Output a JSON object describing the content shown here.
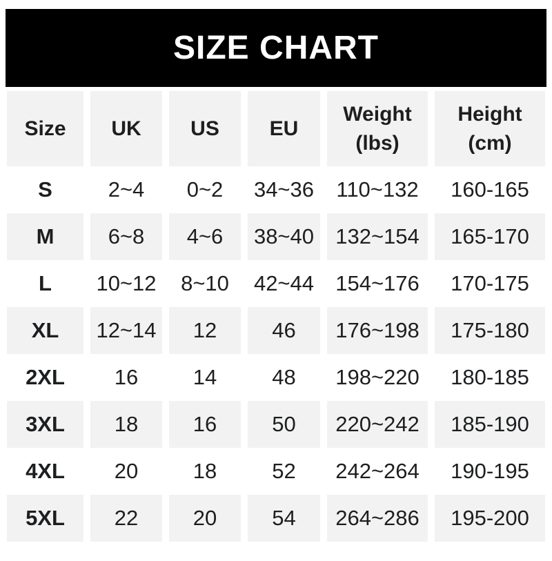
{
  "banner": {
    "title": "SIZE CHART"
  },
  "colors": {
    "banner_bg": "#000000",
    "banner_fg": "#ffffff",
    "row_alt_bg": "#f2f2f2",
    "text": "#1d1e20"
  },
  "chart_data": {
    "type": "table",
    "title": "SIZE CHART",
    "columns": [
      {
        "label": "Size",
        "sub": ""
      },
      {
        "label": "UK",
        "sub": ""
      },
      {
        "label": "US",
        "sub": ""
      },
      {
        "label": "EU",
        "sub": ""
      },
      {
        "label": "Weight",
        "sub": "(lbs)"
      },
      {
        "label": "Height",
        "sub": "(cm)"
      }
    ],
    "rows": [
      {
        "size": "S",
        "uk": "2~4",
        "us": "0~2",
        "eu": "34~36",
        "weight_lbs": "110~132",
        "height_cm": "160-165"
      },
      {
        "size": "M",
        "uk": "6~8",
        "us": "4~6",
        "eu": "38~40",
        "weight_lbs": "132~154",
        "height_cm": "165-170"
      },
      {
        "size": "L",
        "uk": "10~12",
        "us": "8~10",
        "eu": "42~44",
        "weight_lbs": "154~176",
        "height_cm": "170-175"
      },
      {
        "size": "XL",
        "uk": "12~14",
        "us": "12",
        "eu": "46",
        "weight_lbs": "176~198",
        "height_cm": "175-180"
      },
      {
        "size": "2XL",
        "uk": "16",
        "us": "14",
        "eu": "48",
        "weight_lbs": "198~220",
        "height_cm": "180-185"
      },
      {
        "size": "3XL",
        "uk": "18",
        "us": "16",
        "eu": "50",
        "weight_lbs": "220~242",
        "height_cm": "185-190"
      },
      {
        "size": "4XL",
        "uk": "20",
        "us": "18",
        "eu": "52",
        "weight_lbs": "242~264",
        "height_cm": "190-195"
      },
      {
        "size": "5XL",
        "uk": "22",
        "us": "20",
        "eu": "54",
        "weight_lbs": "264~286",
        "height_cm": "195-200"
      }
    ]
  }
}
